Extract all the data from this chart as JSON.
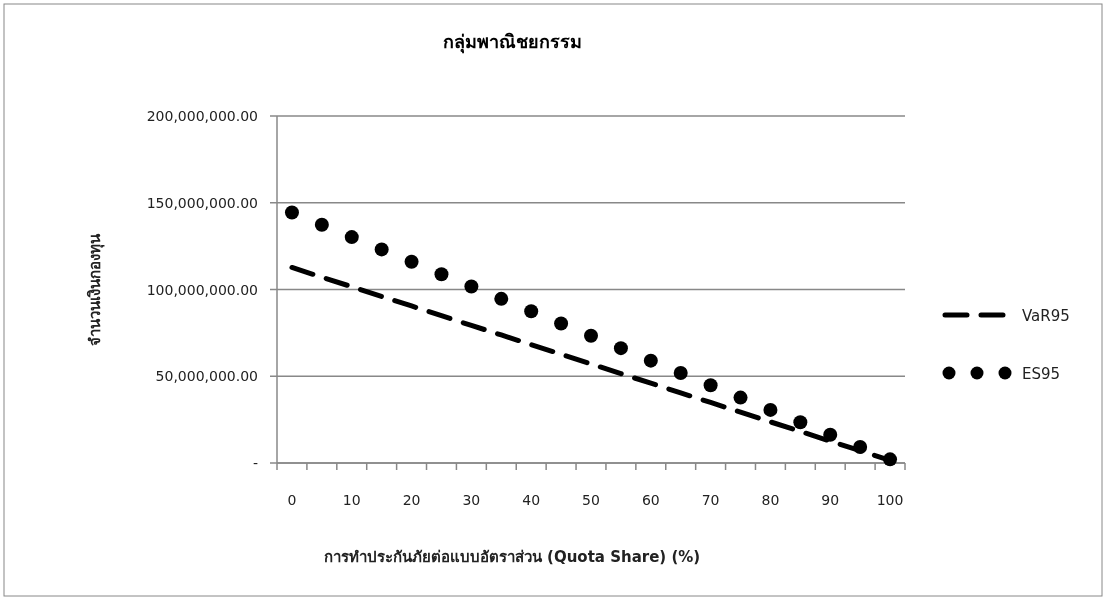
{
  "chart_data": {
    "type": "line",
    "title": "กลุ่มพาณิชยกรรม",
    "xlabel": "การทำประกันภัยต่อแบบอัตราส่วน (Quota Share) (%)",
    "ylabel": "จำนวนเงินกองทุน",
    "categories": [
      "0",
      null,
      "10",
      null,
      "20",
      null,
      "30",
      null,
      "40",
      null,
      "50",
      null,
      "60",
      null,
      "70",
      null,
      "80",
      null,
      "90",
      null,
      "100"
    ],
    "series": [
      {
        "name": "VaR95",
        "color": "#000000",
        "type": "line",
        "line_style": "dashed",
        "values": [
          112700000,
          107100000,
          101600000,
          96000000,
          90500000,
          84900000,
          79300000,
          73800000,
          68200000,
          62700000,
          57100000,
          51500000,
          46000000,
          40400000,
          34900000,
          29300000,
          23700000,
          18200000,
          12600000,
          7100000,
          1500000
        ]
      },
      {
        "name": "ES95",
        "color": "#000000",
        "type": "scatter",
        "marker": "circle",
        "values": [
          144400000,
          137300000,
          130200000,
          123100000,
          116000000,
          108800000,
          101700000,
          94600000,
          87500000,
          80400000,
          73300000,
          66200000,
          59000000,
          51900000,
          44800000,
          37700000,
          30600000,
          23500000,
          16300000,
          9200000,
          2100000
        ]
      }
    ],
    "ylim": [
      0,
      200000000
    ],
    "yticks": [
      {
        "value": 0,
        "label": "-"
      },
      {
        "value": 50000000,
        "label": "50,000,000.00"
      },
      {
        "value": 100000000,
        "label": "100,000,000.00"
      },
      {
        "value": 150000000,
        "label": "150,000,000.00"
      },
      {
        "value": 200000000,
        "label": "200,000,000.00"
      }
    ],
    "grid": "y",
    "legend": "right"
  }
}
